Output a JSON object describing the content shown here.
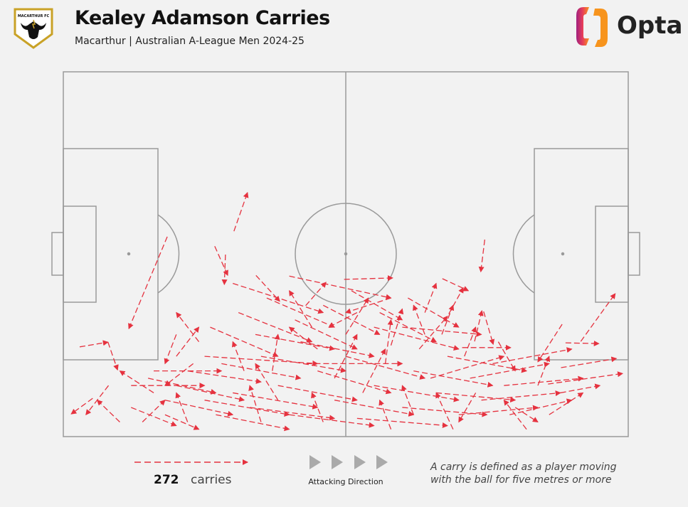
{
  "header": {
    "title": "Kealey Adamson Carries",
    "subtitle": "Macarthur | Australian A-League Men 2024-25",
    "team_logo_text": "MACARTHUR FC",
    "brand": "Opta"
  },
  "legend": {
    "count": "272",
    "count_label": "carries",
    "direction_label": "Attacking Direction",
    "note_line1": "A carry is defined as a player moving",
    "note_line2": "with the ball for five metres or more"
  },
  "colors": {
    "carry": "#e5323f",
    "pitch_lines": "#9a9a9a",
    "background": "#f2f2f2",
    "direction_arrows": "#aaaaaa"
  },
  "chart_data": {
    "type": "pitch-carry-map",
    "title": "Kealey Adamson Carries",
    "subtitle": "Macarthur | Australian A-League Men 2024-25",
    "coordinate_system": "Opta pitch 0-100 (x: own goal to opponent goal, y: 0 = bottom touchline)",
    "attacking_direction": "left-to-right",
    "total_carries": 272,
    "carries_sample": [
      [
        30.2,
        56.3,
        32.6,
        66.9
      ],
      [
        18.4,
        54.8,
        11.6,
        29.6
      ],
      [
        2.9,
        24.6,
        7.9,
        25.9
      ],
      [
        7.9,
        25.9,
        9.6,
        18.3
      ],
      [
        26.8,
        52.2,
        29.1,
        44.2
      ],
      [
        28.7,
        49.9,
        28.5,
        41.7
      ],
      [
        74.6,
        54.0,
        73.9,
        45.2
      ],
      [
        67.1,
        43.3,
        71.7,
        40.0
      ],
      [
        91.6,
        26.1,
        97.7,
        39.2
      ],
      [
        88.9,
        25.7,
        94.8,
        25.5
      ],
      [
        88.3,
        30.8,
        84.0,
        20.5
      ],
      [
        88.1,
        18.9,
        97.9,
        21.4
      ],
      [
        85.8,
        14.4,
        99.0,
        17.3
      ],
      [
        49.7,
        43.1,
        58.3,
        43.5
      ],
      [
        42.9,
        35.9,
        46.5,
        42.3
      ],
      [
        34.1,
        44.2,
        38.3,
        37.1
      ],
      [
        74.4,
        34.3,
        76.1,
        25.3
      ],
      [
        72.8,
        26.1,
        74.1,
        34.5
      ],
      [
        67.5,
        31.6,
        70.8,
        40.8
      ],
      [
        70.6,
        24.4,
        79.2,
        24.4
      ],
      [
        5.2,
        10.5,
        1.4,
        6.2
      ],
      [
        15,
        16,
        27,
        12
      ],
      [
        20,
        14,
        32,
        10
      ],
      [
        22,
        18,
        35,
        15
      ],
      [
        12,
        8,
        20,
        3
      ],
      [
        18,
        6,
        24,
        2
      ],
      [
        25,
        10,
        40,
        6
      ],
      [
        30,
        12,
        45,
        8
      ],
      [
        28,
        20,
        42,
        16
      ],
      [
        35,
        22,
        50,
        18
      ],
      [
        33,
        8,
        48,
        5
      ],
      [
        38,
        14,
        52,
        10
      ],
      [
        40,
        6,
        55,
        3
      ],
      [
        45,
        18,
        58,
        12
      ],
      [
        42,
        26,
        55,
        22
      ],
      [
        48,
        10,
        62,
        6
      ],
      [
        50,
        22,
        64,
        16
      ],
      [
        52,
        5,
        68,
        3
      ],
      [
        55,
        14,
        70,
        10
      ],
      [
        58,
        25,
        60,
        35
      ],
      [
        60,
        8,
        75,
        6
      ],
      [
        62,
        18,
        76,
        14
      ],
      [
        64,
        28,
        62,
        36
      ],
      [
        66,
        12,
        80,
        10
      ],
      [
        68,
        22,
        82,
        18
      ],
      [
        70,
        6,
        84,
        8
      ],
      [
        72,
        16,
        86,
        20
      ],
      [
        74,
        10,
        88,
        12
      ],
      [
        76,
        20,
        90,
        24
      ],
      [
        78,
        14,
        92,
        16
      ],
      [
        80,
        8,
        84,
        4
      ],
      [
        26,
        30,
        38,
        22
      ],
      [
        31,
        34,
        44,
        26
      ],
      [
        36,
        38,
        48,
        30
      ],
      [
        41,
        32,
        52,
        24
      ],
      [
        46,
        36,
        56,
        28
      ],
      [
        51,
        40,
        60,
        32
      ],
      [
        56,
        34,
        66,
        26
      ],
      [
        61,
        38,
        70,
        30
      ],
      [
        44,
        30,
        40,
        40
      ],
      [
        50,
        28,
        54,
        38
      ],
      [
        57,
        20,
        58,
        32
      ],
      [
        63,
        24,
        68,
        33
      ],
      [
        48,
        16,
        52,
        28
      ],
      [
        53,
        12,
        57,
        24
      ],
      [
        38,
        10,
        34,
        20
      ],
      [
        24,
        26,
        20,
        34
      ],
      [
        20,
        22,
        24,
        30
      ],
      [
        16,
        12,
        10,
        18
      ],
      [
        10,
        4,
        6,
        10
      ],
      [
        8,
        14,
        4,
        6
      ],
      [
        14,
        4,
        18,
        10
      ],
      [
        22,
        4,
        20,
        12
      ],
      [
        35,
        4,
        33,
        14
      ],
      [
        46,
        4,
        44,
        12
      ],
      [
        58,
        2,
        56,
        10
      ],
      [
        69,
        2,
        66,
        12
      ],
      [
        82,
        2,
        78,
        10
      ],
      [
        86,
        6,
        92,
        12
      ],
      [
        88,
        12,
        95,
        14
      ],
      [
        40,
        44,
        58,
        38
      ],
      [
        30,
        42,
        46,
        34
      ],
      [
        34,
        28,
        48,
        24
      ],
      [
        43,
        20,
        60,
        20
      ],
      [
        25,
        22,
        45,
        20
      ],
      [
        55,
        30,
        70,
        24
      ],
      [
        60,
        30,
        74,
        28
      ],
      [
        65,
        16,
        78,
        22
      ],
      [
        71,
        22,
        73,
        30
      ],
      [
        67,
        28,
        69,
        36
      ],
      [
        64,
        34,
        66,
        42
      ],
      [
        18,
        10,
        30,
        6
      ],
      [
        27,
        6,
        40,
        2
      ],
      [
        32,
        18,
        30,
        26
      ],
      [
        37,
        18,
        38,
        28
      ],
      [
        12,
        14,
        25,
        14
      ],
      [
        16,
        18,
        28,
        18
      ],
      [
        20,
        28,
        18,
        20
      ],
      [
        23,
        20,
        18,
        14
      ],
      [
        52,
        34,
        47,
        30
      ],
      [
        58,
        38,
        50,
        34
      ],
      [
        45,
        24,
        40,
        30
      ],
      [
        62,
        6,
        60,
        14
      ],
      [
        73,
        12,
        70,
        4
      ],
      [
        77,
        26,
        80,
        18
      ],
      [
        84,
        14,
        86,
        22
      ],
      [
        79,
        6,
        90,
        10
      ]
    ]
  }
}
